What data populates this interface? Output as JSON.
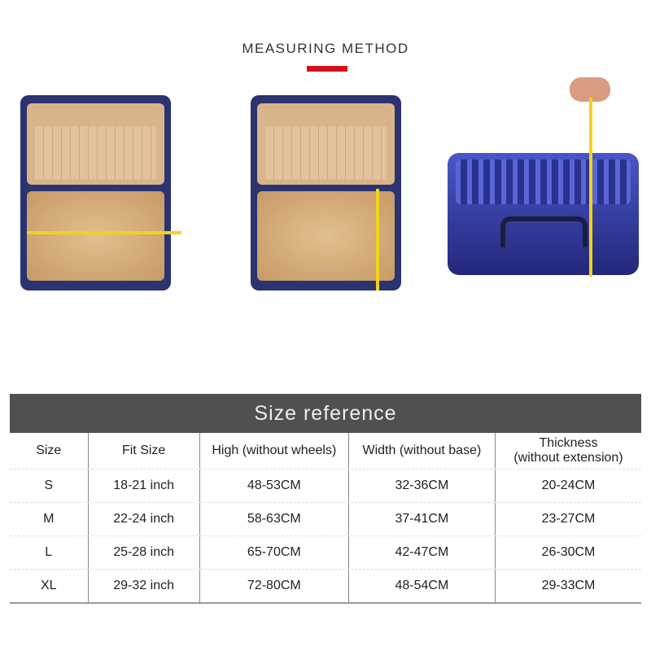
{
  "heading": "MEASURING METHOD",
  "colors": {
    "accent": "#d0121b",
    "header_bg": "#505050",
    "tape": "#f2d21a",
    "suitcase": "#2b3370"
  },
  "images": [
    "open-suitcase-width-measure",
    "open-suitcase-height-measure",
    "closed-suitcase-thickness-measure"
  ],
  "table": {
    "title": "Size reference",
    "columns": [
      "Size",
      "Fit Size",
      "High (without wheels)",
      "Width (without base)",
      "Thickness\n(without extension)"
    ],
    "rows": [
      [
        "S",
        "18-21 inch",
        "48-53CM",
        "32-36CM",
        "20-24CM"
      ],
      [
        "M",
        "22-24 inch",
        "58-63CM",
        "37-41CM",
        "23-27CM"
      ],
      [
        "L",
        "25-28 inch",
        "65-70CM",
        "42-47CM",
        "26-30CM"
      ],
      [
        "XL",
        "29-32 inch",
        "72-80CM",
        "48-54CM",
        "29-33CM"
      ]
    ]
  }
}
